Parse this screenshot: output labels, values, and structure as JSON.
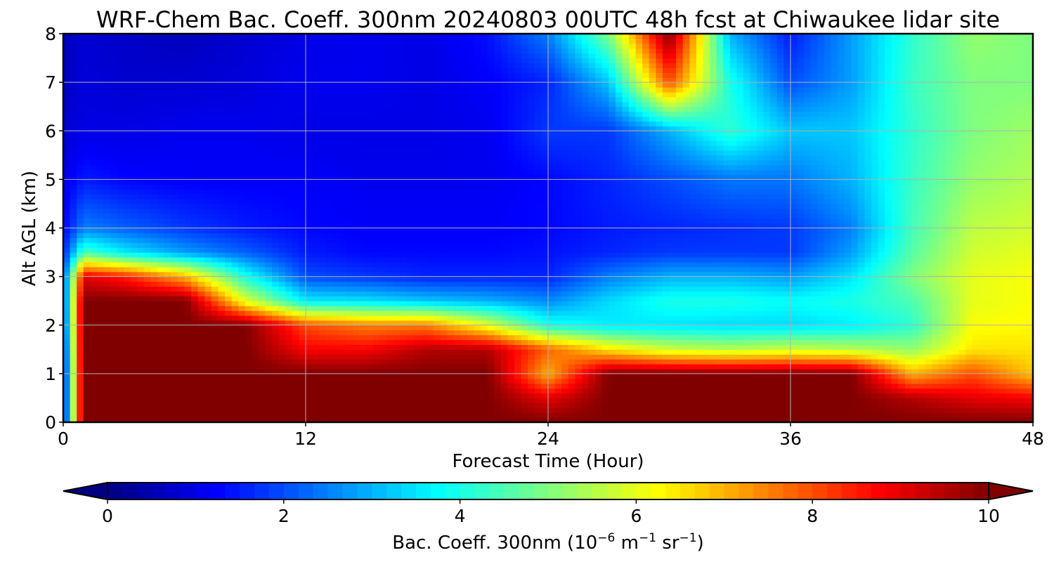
{
  "chart_data": {
    "type": "heatmap",
    "title": "WRF-Chem Bac. Coeff. 300nm  20240803 00UTC 48h fcst at Chiwaukee lidar site",
    "xlabel": "Forecast Time (Hour)",
    "ylabel": "Alt AGL (km)",
    "x_ticks": [
      "0",
      "12",
      "24",
      "36",
      "48"
    ],
    "y_ticks": [
      "0",
      "1",
      "2",
      "3",
      "4",
      "5",
      "6",
      "7",
      "8"
    ],
    "xlim": [
      0,
      48
    ],
    "ylim": [
      0,
      8
    ],
    "grid": true,
    "colormap": "jet",
    "colorbar": {
      "orientation": "horizontal",
      "placement": "bottom",
      "range": [
        0,
        10
      ],
      "extend": "both",
      "ticks": [
        "0",
        "2",
        "4",
        "6",
        "8",
        "10"
      ],
      "label_prefix": "Bac. Coeff. 300nm  (10",
      "label_exp1": "−6",
      "label_mid": " m",
      "label_exp2": "−1",
      "label_mid2": " sr",
      "label_exp3": "−1",
      "label_suffix": ")"
    },
    "x": [
      0,
      1,
      3,
      6,
      9,
      12,
      15,
      18,
      21,
      24,
      27,
      30,
      33,
      36,
      39,
      42,
      45,
      48
    ],
    "y": [
      0,
      0.5,
      1,
      1.5,
      2,
      2.5,
      3,
      3.5,
      4,
      5,
      6,
      7,
      8
    ],
    "values": [
      [
        1.0,
        10,
        10,
        10,
        10,
        10,
        10,
        10,
        10,
        10,
        10,
        10,
        10,
        10,
        10,
        10,
        10,
        10
      ],
      [
        1.0,
        10,
        10,
        10,
        10,
        10,
        10,
        10,
        10,
        9.0,
        10,
        10,
        10,
        10,
        10,
        9.5,
        9.0,
        8.8
      ],
      [
        1.0,
        10,
        10,
        10,
        10,
        10,
        10,
        10,
        10,
        7.0,
        10,
        10,
        10,
        10,
        10,
        7.0,
        8.0,
        6.8
      ],
      [
        1.2,
        10,
        10,
        10,
        10,
        8.8,
        8.8,
        9.5,
        9.5,
        7.8,
        6.5,
        5.8,
        5.6,
        5.8,
        5.6,
        5.2,
        6.5,
        6.5
      ],
      [
        1.5,
        10,
        10,
        10,
        10,
        8.0,
        7.5,
        7.5,
        6.0,
        4.0,
        3.6,
        3.5,
        3.4,
        3.4,
        3.6,
        4.2,
        6.2,
        6.3
      ],
      [
        1.6,
        10,
        10,
        10,
        6.0,
        3.6,
        3.5,
        3.2,
        3.0,
        2.6,
        3.4,
        4.0,
        4.0,
        3.8,
        4.0,
        4.5,
        6.0,
        6.2
      ],
      [
        1.8,
        9.0,
        8.5,
        7.0,
        4.0,
        2.0,
        1.8,
        1.6,
        1.6,
        1.6,
        2.5,
        3.0,
        3.0,
        2.8,
        3.5,
        5.0,
        6.0,
        6.2
      ],
      [
        1.5,
        4.5,
        3.6,
        2.8,
        2.2,
        1.5,
        1.3,
        1.3,
        1.3,
        1.4,
        1.6,
        1.8,
        1.8,
        1.8,
        2.8,
        4.6,
        5.8,
        6.0
      ],
      [
        1.2,
        2.5,
        2.2,
        1.8,
        1.5,
        1.3,
        1.2,
        1.2,
        1.2,
        1.3,
        1.5,
        1.6,
        1.7,
        1.8,
        2.5,
        4.4,
        5.6,
        5.8
      ],
      [
        1.0,
        1.5,
        1.3,
        1.2,
        1.2,
        1.2,
        1.1,
        1.1,
        1.1,
        1.3,
        1.6,
        2.0,
        2.4,
        2.4,
        3.0,
        4.3,
        5.2,
        5.5
      ],
      [
        0.8,
        1.0,
        1.0,
        1.1,
        1.1,
        1.0,
        1.0,
        1.0,
        1.1,
        1.8,
        1.8,
        3.0,
        4.2,
        3.2,
        3.2,
        4.2,
        5.0,
        5.3
      ],
      [
        0.6,
        0.9,
        0.8,
        0.8,
        0.9,
        1.1,
        1.1,
        1.0,
        1.2,
        1.6,
        3.2,
        8.0,
        4.0,
        2.0,
        2.8,
        4.3,
        5.0,
        5.0
      ],
      [
        0.6,
        0.8,
        0.7,
        0.6,
        0.8,
        1.0,
        1.1,
        1.0,
        1.4,
        2.5,
        5.0,
        10,
        3.0,
        1.5,
        2.8,
        4.2,
        5.2,
        5.0
      ]
    ]
  }
}
